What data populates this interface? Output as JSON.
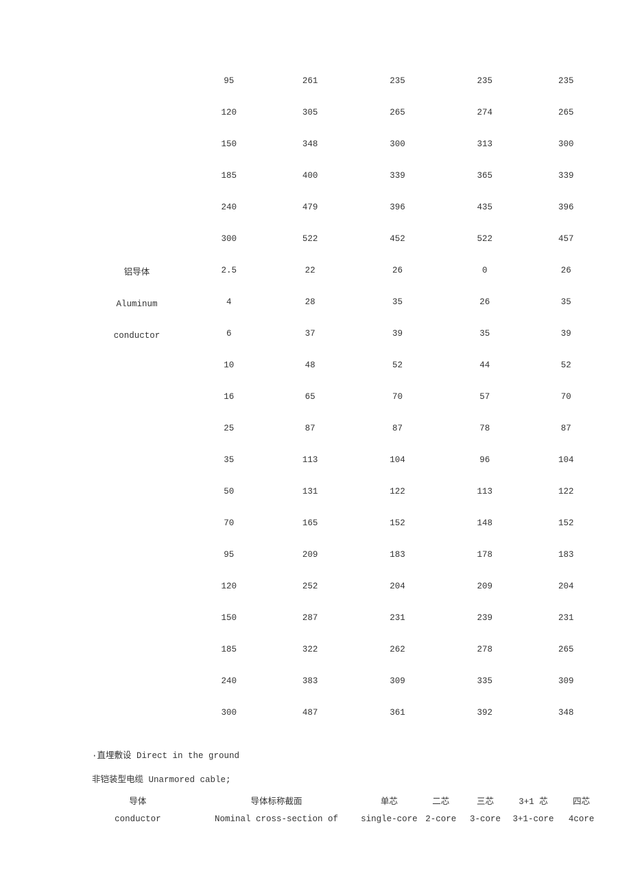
{
  "upper_rows": [
    [
      "95",
      "261",
      "235",
      "235",
      "235"
    ],
    [
      "120",
      "305",
      "265",
      "274",
      "265"
    ],
    [
      "150",
      "348",
      "300",
      "313",
      "300"
    ],
    [
      "185",
      "400",
      "339",
      "365",
      "339"
    ],
    [
      "240",
      "479",
      "396",
      "435",
      "396"
    ],
    [
      "300",
      "522",
      "452",
      "522",
      "457"
    ]
  ],
  "row_label": {
    "line1": "铝导体",
    "line2": "Aluminum",
    "line3": "conductor"
  },
  "lower_rows": [
    [
      "2.5",
      "22",
      "26",
      "0",
      "26"
    ],
    [
      "4",
      "28",
      "35",
      "26",
      "35"
    ],
    [
      "6",
      "37",
      "39",
      "35",
      "39"
    ],
    [
      "10",
      "48",
      "52",
      "44",
      "52"
    ],
    [
      "16",
      "65",
      "70",
      "57",
      "70"
    ],
    [
      "25",
      "87",
      "87",
      "78",
      "87"
    ],
    [
      "35",
      "113",
      "104",
      "96",
      "104"
    ],
    [
      "50",
      "131",
      "122",
      "113",
      "122"
    ],
    [
      "70",
      "165",
      "152",
      "148",
      "152"
    ],
    [
      "95",
      "209",
      "183",
      "178",
      "183"
    ],
    [
      "120",
      "252",
      "204",
      "209",
      "204"
    ],
    [
      "150",
      "287",
      "231",
      "239",
      "231"
    ],
    [
      "185",
      "322",
      "262",
      "278",
      "265"
    ],
    [
      "240",
      "383",
      "309",
      "335",
      "309"
    ],
    [
      "300",
      "487",
      "361",
      "392",
      "348"
    ]
  ],
  "note1": "·直埋敷设 Direct in the ground",
  "note2": "非铠装型电缆 Unarmored cable;",
  "subheader": {
    "row1": [
      "导体",
      "导体标称截面",
      "单芯",
      "二芯",
      "三芯",
      "3+1 芯",
      "四芯"
    ],
    "row2": [
      "conductor",
      "Nominal cross-section of",
      "single-core",
      "2-core",
      "3-core",
      "3+1-core",
      "4core"
    ]
  },
  "colors": {
    "background": "#ffffff",
    "text": "#333333"
  }
}
